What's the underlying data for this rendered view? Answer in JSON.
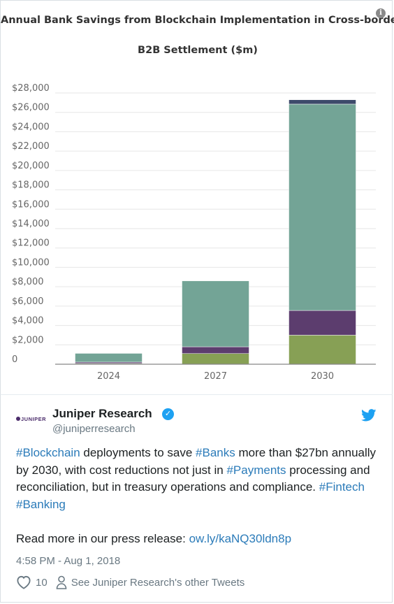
{
  "chart_data": {
    "type": "bar",
    "stacked": true,
    "title": "Annual Bank Savings from Blockchain Implementation in Cross-border",
    "subtitle": "B2B Settlement ($m)",
    "categories": [
      "2024",
      "2027",
      "2030"
    ],
    "series": [
      {
        "color": "#87a055",
        "values": [
          80,
          1100,
          3000
        ]
      },
      {
        "color": "#5c3d6e",
        "values": [
          140,
          700,
          2550
        ]
      },
      {
        "color": "#73a496",
        "values": [
          900,
          6800,
          21300
        ]
      },
      {
        "color": "#3d4a6b",
        "values": [
          0,
          0,
          450
        ]
      }
    ],
    "ylim": [
      0,
      28000
    ],
    "yticks": [
      0,
      2000,
      4000,
      6000,
      8000,
      10000,
      12000,
      14000,
      16000,
      18000,
      20000,
      22000,
      24000,
      26000,
      28000
    ],
    "ytick_labels": [
      "0",
      "$2,000",
      "$4,000",
      "$6,000",
      "$8,000",
      "$10,000",
      "$12,000",
      "$14,000",
      "$16,000",
      "$18,000",
      "$20,000",
      "$22,000",
      "$24,000",
      "$26,000",
      "$28,000"
    ],
    "grid": true,
    "legend": "none"
  },
  "chart_ui": {
    "info_icon": "info-icon",
    "info_glyph": "i"
  },
  "tweet": {
    "avatar_text": "JUNIPER",
    "author_name": "Juniper Research",
    "handle": "@juniperresearch",
    "verified_icon": "verified-check-icon",
    "brand_icon": "twitter-bird-icon",
    "text": {
      "tag_blockchain": "#Blockchain",
      "t1": " deployments to save ",
      "tag_banks": "#Banks",
      "t2": " more than $27bn annually by 2030, with cost reductions not just in ",
      "tag_payments": "#Payments",
      "t3": " processing and reconciliation, but in treasury operations and compliance. ",
      "tag_fintech": "#Fintech",
      "tag_banking": "#Banking",
      "read_more": "Read more in our press release: ",
      "link": "ow.ly/kaNQ30ldn8p"
    },
    "timestamp": "4:58 PM - Aug 1, 2018",
    "likes": "10",
    "other_tweets": "See Juniper Research's other Tweets",
    "link_color": "#2b7bb9"
  }
}
